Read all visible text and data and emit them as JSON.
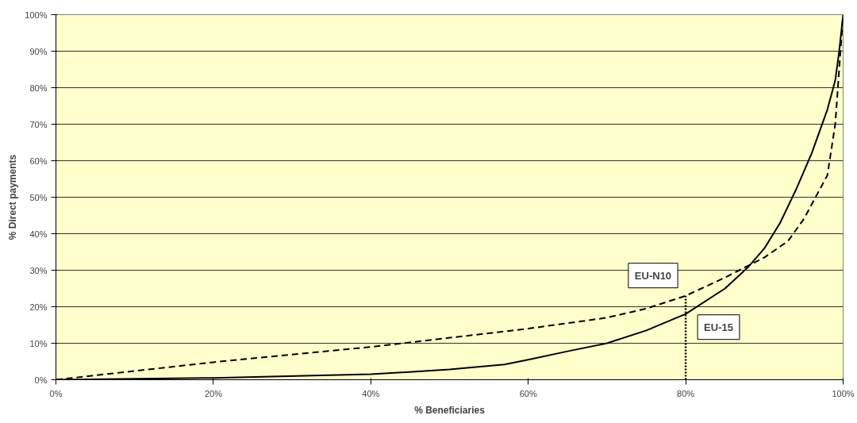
{
  "chart_data": {
    "type": "line",
    "xlabel": "% Beneficiaries",
    "ylabel": "% Direct payments",
    "xlim": [
      0,
      100
    ],
    "ylim": [
      0,
      100
    ],
    "xticks": [
      {
        "value": 0,
        "label": "0%"
      },
      {
        "value": 20,
        "label": "20%"
      },
      {
        "value": 40,
        "label": "40%"
      },
      {
        "value": 60,
        "label": "60%"
      },
      {
        "value": 80,
        "label": "80%"
      },
      {
        "value": 100,
        "label": "100%"
      }
    ],
    "yticks": [
      {
        "value": 0,
        "label": "0%"
      },
      {
        "value": 10,
        "label": "10%"
      },
      {
        "value": 20,
        "label": "20%"
      },
      {
        "value": 30,
        "label": "30%"
      },
      {
        "value": 40,
        "label": "40%"
      },
      {
        "value": 50,
        "label": "50%"
      },
      {
        "value": 60,
        "label": "60%"
      },
      {
        "value": 70,
        "label": "70%"
      },
      {
        "value": 80,
        "label": "80%"
      },
      {
        "value": 90,
        "label": "90%"
      },
      {
        "value": 100,
        "label": "100%"
      }
    ],
    "grid": "y",
    "legend": false,
    "marker": "none",
    "series": [
      {
        "name": "EU-15",
        "color": "#000000",
        "line_style": "solid",
        "x": [
          0,
          20,
          40,
          50,
          57,
          60,
          65,
          70,
          75,
          80,
          85,
          88,
          90,
          92,
          94,
          96,
          98,
          99,
          99.5,
          100
        ],
        "values": [
          0,
          0.5,
          1.5,
          2.8,
          4.2,
          5.5,
          7.8,
          10,
          13.5,
          18,
          25,
          31,
          36,
          43,
          52,
          62,
          74,
          82,
          90,
          100
        ]
      },
      {
        "name": "EU-N10",
        "color": "#000000",
        "line_style": "dashed",
        "x": [
          0,
          20,
          40,
          50,
          60,
          70,
          75,
          80,
          85,
          90,
          93,
          95,
          97,
          98,
          99,
          99.5,
          100
        ],
        "values": [
          0,
          4.8,
          9,
          11.5,
          14,
          17,
          19.5,
          23,
          28,
          33.5,
          38,
          44,
          52,
          56,
          70,
          85,
          100
        ]
      }
    ],
    "ref_lines": [
      {
        "axis": "x",
        "value": 80,
        "label": null,
        "line_style": "dotted",
        "color": "#000000"
      }
    ]
  }
}
